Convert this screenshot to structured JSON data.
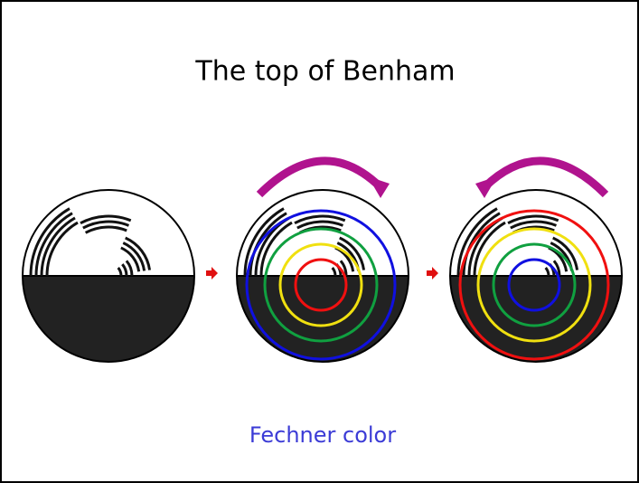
{
  "title": "The top of Benham",
  "caption": "Fechner color"
}
